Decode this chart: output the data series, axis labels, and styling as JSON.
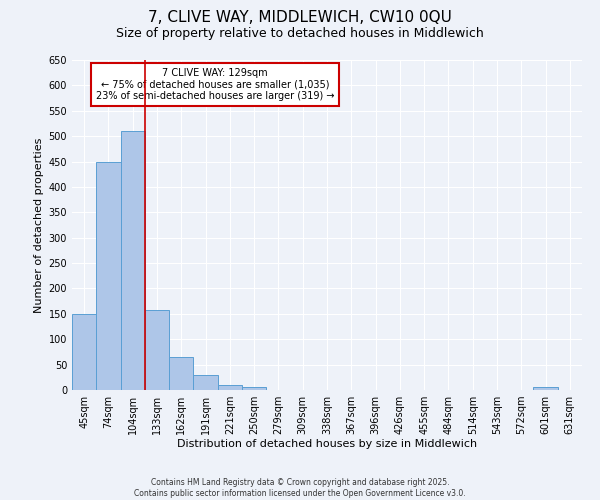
{
  "title": "7, CLIVE WAY, MIDDLEWICH, CW10 0QU",
  "subtitle": "Size of property relative to detached houses in Middlewich",
  "xlabel": "Distribution of detached houses by size in Middlewich",
  "ylabel": "Number of detached properties",
  "bar_labels": [
    "45sqm",
    "74sqm",
    "104sqm",
    "133sqm",
    "162sqm",
    "191sqm",
    "221sqm",
    "250sqm",
    "279sqm",
    "309sqm",
    "338sqm",
    "367sqm",
    "396sqm",
    "426sqm",
    "455sqm",
    "484sqm",
    "514sqm",
    "543sqm",
    "572sqm",
    "601sqm",
    "631sqm"
  ],
  "bar_values": [
    150,
    450,
    510,
    158,
    65,
    30,
    10,
    5,
    0,
    0,
    0,
    0,
    0,
    0,
    0,
    0,
    0,
    0,
    0,
    5,
    0
  ],
  "bar_color": "#aec6e8",
  "bar_edge_color": "#5a9fd4",
  "vline_x": 3,
  "vline_color": "#cc0000",
  "ylim": [
    0,
    650
  ],
  "yticks": [
    0,
    50,
    100,
    150,
    200,
    250,
    300,
    350,
    400,
    450,
    500,
    550,
    600,
    650
  ],
  "annotation_box_text_line1": "7 CLIVE WAY: 129sqm",
  "annotation_box_text_line2": "← 75% of detached houses are smaller (1,035)",
  "annotation_box_text_line3": "23% of semi-detached houses are larger (319) →",
  "annotation_box_color": "#ffffff",
  "annotation_box_edge_color": "#cc0000",
  "bg_color": "#eef2f9",
  "grid_color": "#ffffff",
  "footer_line1": "Contains HM Land Registry data © Crown copyright and database right 2025.",
  "footer_line2": "Contains public sector information licensed under the Open Government Licence v3.0.",
  "title_fontsize": 11,
  "subtitle_fontsize": 9,
  "axis_label_fontsize": 8,
  "tick_fontsize": 7,
  "annotation_fontsize": 7,
  "footer_fontsize": 5.5
}
